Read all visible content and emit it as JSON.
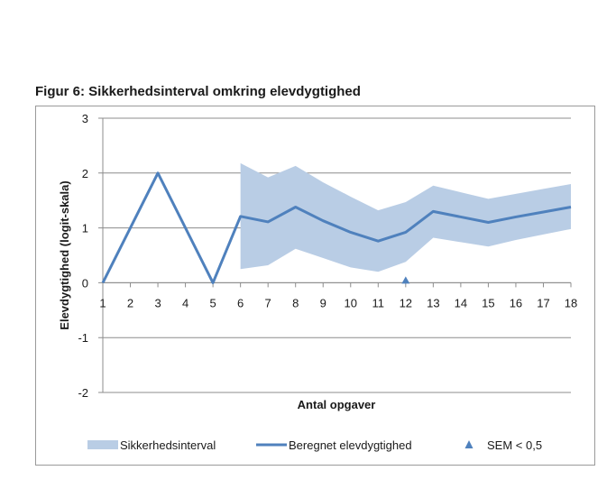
{
  "figure": {
    "title": "Figur 6: Sikkerhedsinterval omkring elevdygtighed"
  },
  "chart_data": {
    "type": "line",
    "xlabel": "Antal opgaver",
    "ylabel": "Elevdygtighed (logit-skala)",
    "x": [
      1,
      2,
      3,
      4,
      5,
      6,
      7,
      8,
      9,
      10,
      11,
      12,
      13,
      14,
      15,
      16,
      17,
      18
    ],
    "xlim": [
      1,
      18
    ],
    "ylim": [
      -2,
      3
    ],
    "yticks": [
      -2,
      -1,
      0,
      1,
      2,
      3
    ],
    "grid": true,
    "legend_position": "bottom",
    "series": [
      {
        "name": "Sikkerhedsinterval",
        "kind": "band",
        "color": "#b9cde5",
        "x": [
          6,
          7,
          8,
          9,
          10,
          11,
          12,
          13,
          14,
          15,
          16,
          17,
          18
        ],
        "lower": [
          0.25,
          0.32,
          0.62,
          0.45,
          0.28,
          0.2,
          0.38,
          0.82,
          0.74,
          0.66,
          0.78,
          0.88,
          0.98
        ],
        "upper": [
          2.18,
          1.92,
          2.13,
          1.83,
          1.57,
          1.32,
          1.47,
          1.77,
          1.65,
          1.53,
          1.62,
          1.71,
          1.8
        ]
      },
      {
        "name": "Beregnet elevdygtighed",
        "kind": "line",
        "color": "#4f81bd",
        "x": [
          1,
          2,
          3,
          4,
          5,
          6,
          7,
          8,
          9,
          10,
          11,
          12,
          13,
          14,
          15,
          16,
          17,
          18
        ],
        "values": [
          0,
          1.0,
          2.0,
          1.0,
          0,
          1.21,
          1.11,
          1.38,
          1.13,
          0.92,
          0.76,
          0.92,
          1.3,
          1.2,
          1.1,
          1.2,
          1.29,
          1.38
        ]
      },
      {
        "name": "SEM < 0,5",
        "kind": "marker",
        "color": "#4f81bd",
        "x": [
          12
        ],
        "values": [
          0
        ]
      }
    ]
  }
}
